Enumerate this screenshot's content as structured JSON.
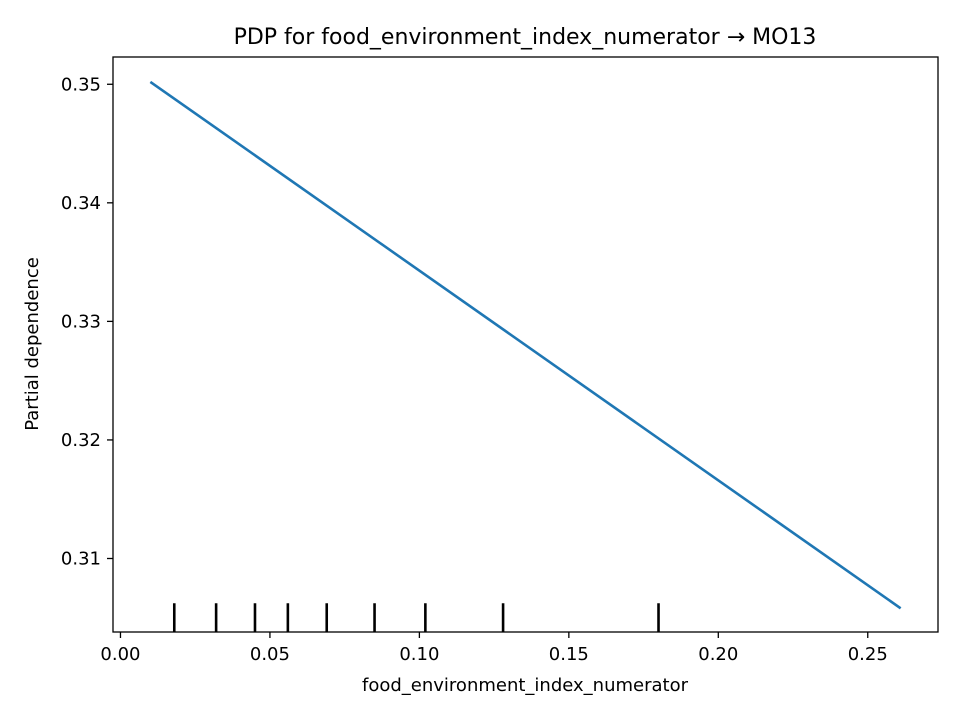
{
  "chart_data": {
    "type": "line",
    "title": "PDP for food_environment_index_numerator → MO13",
    "xlabel": "food_environment_index_numerator",
    "ylabel": "Partial dependence",
    "xlim": [
      -0.0025,
      0.2735
    ],
    "ylim": [
      0.3038,
      0.3523
    ],
    "x_ticks": [
      0.0,
      0.05,
      0.1,
      0.15,
      0.2,
      0.25
    ],
    "x_tick_labels": [
      "0.00",
      "0.05",
      "0.10",
      "0.15",
      "0.20",
      "0.25"
    ],
    "y_ticks": [
      0.31,
      0.32,
      0.33,
      0.34,
      0.35
    ],
    "y_tick_labels": [
      "0.31",
      "0.32",
      "0.33",
      "0.34",
      "0.35"
    ],
    "grid": false,
    "series": [
      {
        "color": "#1f77b4",
        "x": [
          0.01,
          0.261
        ],
        "y": [
          0.3502,
          0.3058
        ]
      }
    ],
    "rug": {
      "color": "#000000",
      "x": [
        0.018,
        0.032,
        0.045,
        0.056,
        0.069,
        0.085,
        0.102,
        0.128,
        0.18
      ]
    }
  }
}
